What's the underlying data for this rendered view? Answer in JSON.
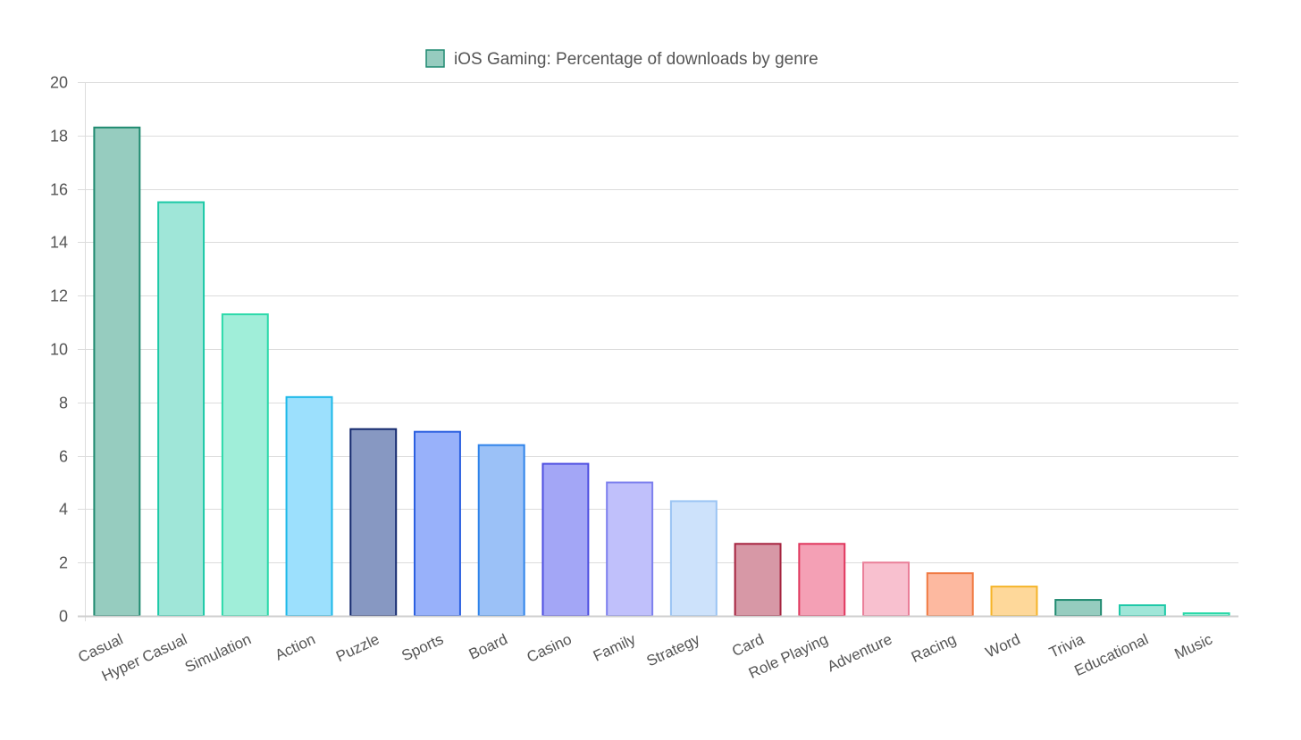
{
  "chart_data": {
    "type": "bar",
    "title": "",
    "legend": {
      "label": "iOS Gaming: Percentage of downloads by genre",
      "position": "top-center",
      "swatch_fill": "#96ccbf",
      "swatch_stroke": "#1f8a70"
    },
    "xlabel": "",
    "ylabel": "",
    "ylim": [
      0,
      20
    ],
    "yticks": [
      0,
      2,
      4,
      6,
      8,
      10,
      12,
      14,
      16,
      18,
      20
    ],
    "grid": true,
    "categories": [
      "Casual",
      "Hyper Casual",
      "Simulation",
      "Action",
      "Puzzle",
      "Sports",
      "Board",
      "Casino",
      "Family",
      "Strategy",
      "Card",
      "Role Playing",
      "Adventure",
      "Racing",
      "Word",
      "Trivia",
      "Educational",
      "Music"
    ],
    "series": [
      {
        "name": "iOS Gaming: Percentage of downloads by genre",
        "values": [
          18.3,
          15.5,
          11.3,
          8.2,
          7.0,
          6.9,
          6.4,
          5.7,
          5.0,
          4.3,
          2.7,
          2.7,
          2.0,
          1.6,
          1.1,
          0.6,
          0.4,
          0.1
        ],
        "fill_colors": [
          "#96ccbf",
          "#9fe6d8",
          "#a0eed9",
          "#9ce0fd",
          "#8798c2",
          "#98b1fa",
          "#9bc1f7",
          "#a3a6f6",
          "#c0c0fb",
          "#cde2fb",
          "#d798a6",
          "#f4a0b5",
          "#f8c0cf",
          "#fdb9a0",
          "#fed89a",
          "#96ccbf",
          "#9fe6d8",
          "#a0eed9"
        ],
        "stroke_colors": [
          "#1f8a70",
          "#1cc9a7",
          "#2ad9a9",
          "#1cb8e8",
          "#14296e",
          "#2b5fe0",
          "#2f83ea",
          "#4d4ee0",
          "#7d80ee",
          "#9ac4f3",
          "#a6233f",
          "#e0365d",
          "#ea7f99",
          "#f07a42",
          "#f5b428",
          "#1f8a70",
          "#1cc9a7",
          "#2ad9a9"
        ]
      }
    ]
  }
}
